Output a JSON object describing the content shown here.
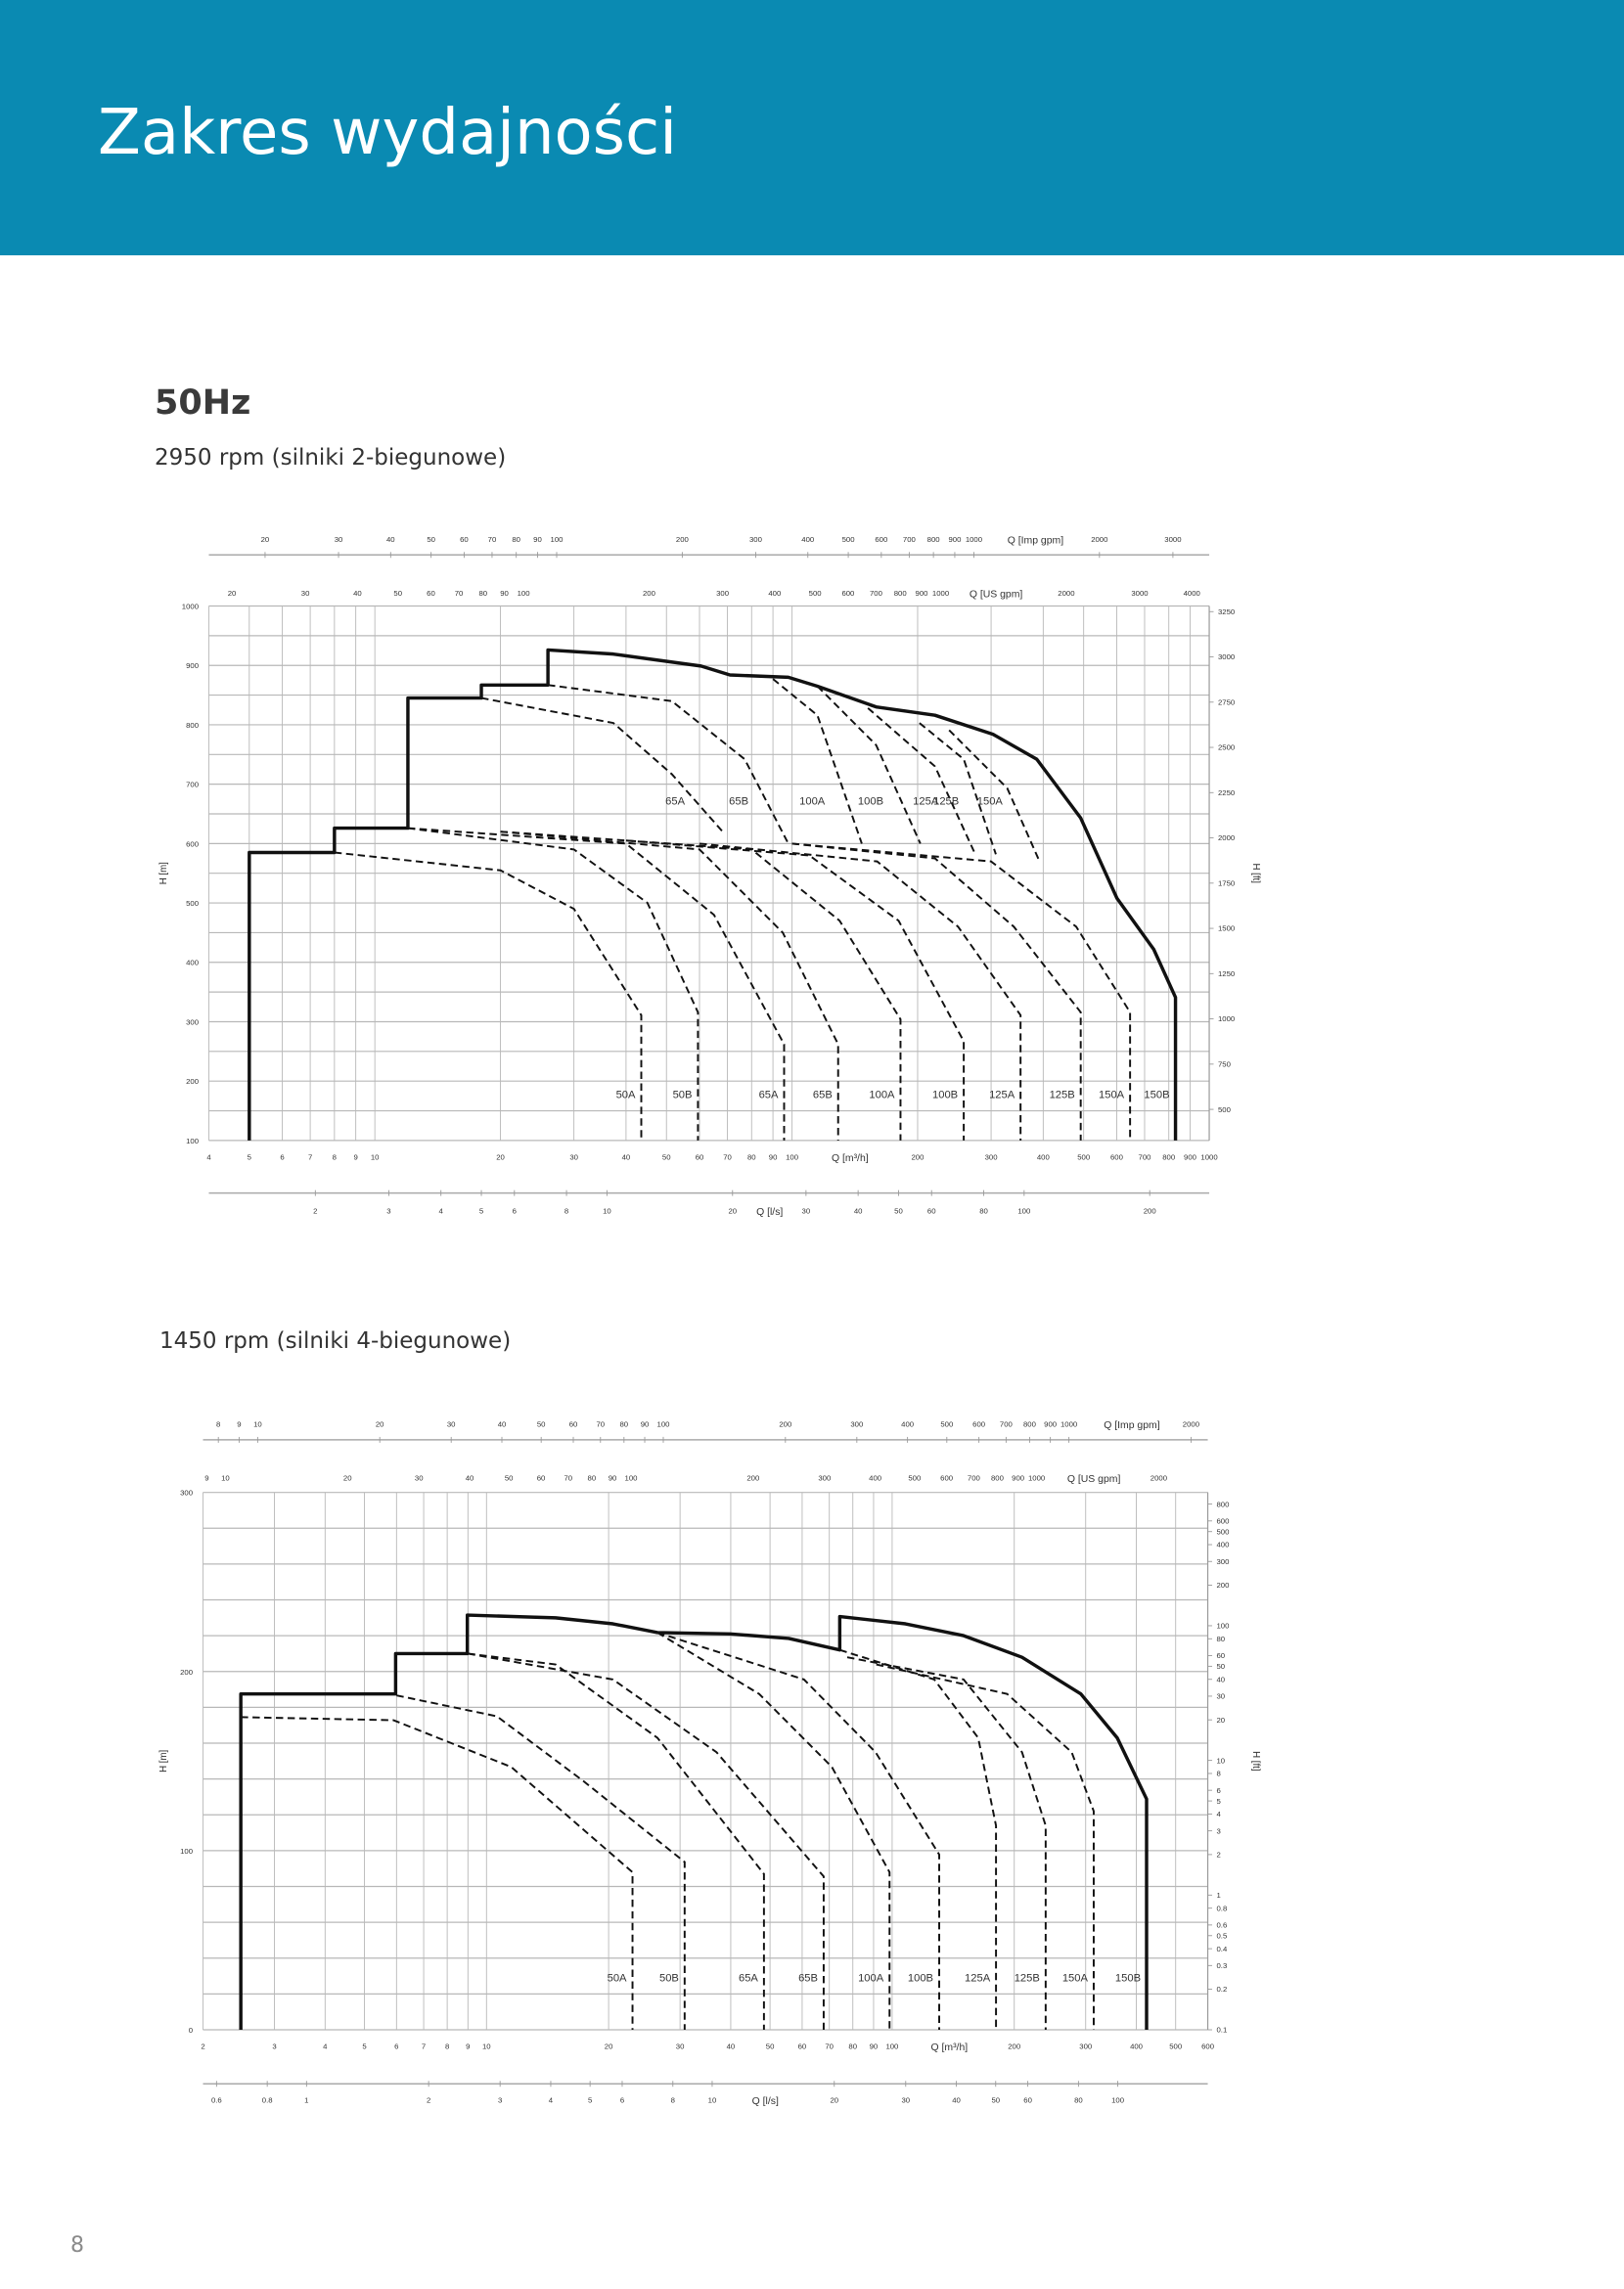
{
  "header": {
    "title": "Zakres wydajności"
  },
  "section": {
    "frequency": "50Hz"
  },
  "page_number": "8",
  "colors": {
    "header_bg": "#0a8ab2",
    "curve": "#111111",
    "grid": "#b8b8b8"
  },
  "chart_data": [
    {
      "type": "line",
      "subtitle": "2950 rpm (silniki 2-biegunowe)",
      "xlabel": "Q [m³/h]",
      "ylabel": "H [m]",
      "y2label": "H [ft]",
      "x_scale": "log",
      "xlim": [
        4,
        1000
      ],
      "ylim": [
        100,
        1000
      ],
      "y2_scale": "linear",
      "grid": true,
      "x_ticks": [
        4,
        5,
        6,
        7,
        8,
        9,
        10,
        20,
        30,
        40,
        50,
        60,
        70,
        80,
        90,
        100,
        200,
        300,
        400,
        500,
        600,
        700,
        800,
        900,
        1000
      ],
      "y_ticks": [
        100,
        200,
        300,
        400,
        500,
        600,
        700,
        800,
        900,
        1000
      ],
      "y2_ticks": [
        500,
        750,
        1000,
        1250,
        1500,
        1750,
        2000,
        2250,
        2500,
        2750,
        3000,
        3250
      ],
      "imp_gpm_axis": {
        "label": "Q [Imp gpm]",
        "ticks": [
          20,
          30,
          40,
          50,
          60,
          70,
          80,
          90,
          100,
          200,
          300,
          400,
          500,
          600,
          700,
          800,
          900,
          1000,
          2000,
          3000
        ]
      },
      "us_gpm_axis": {
        "label": "Q [US gpm]",
        "ticks": [
          20,
          30,
          40,
          50,
          60,
          70,
          80,
          90,
          100,
          200,
          300,
          400,
          500,
          600,
          700,
          800,
          900,
          1000,
          2000,
          3000,
          4000
        ]
      },
      "ls_axis": {
        "label": "Q [l/s]",
        "ticks": [
          2,
          3,
          4,
          5,
          6,
          8,
          10,
          20,
          30,
          40,
          50,
          60,
          80,
          100,
          200
        ]
      },
      "envelope": [
        [
          5,
          100
        ],
        [
          5,
          585
        ],
        [
          8,
          585
        ],
        [
          8,
          626
        ],
        [
          12,
          626
        ],
        [
          12,
          845
        ],
        [
          18,
          845
        ],
        [
          18,
          867
        ],
        [
          26,
          867
        ],
        [
          26,
          926
        ],
        [
          37.3,
          919
        ],
        [
          60.5,
          899
        ],
        [
          71,
          884
        ],
        [
          98,
          880
        ],
        [
          115,
          865
        ],
        [
          159,
          830
        ],
        [
          220,
          816
        ],
        [
          303,
          784
        ],
        [
          386,
          742
        ],
        [
          492,
          643
        ],
        [
          601,
          508
        ],
        [
          736,
          422
        ],
        [
          830,
          341
        ],
        [
          830,
          100
        ]
      ],
      "upper_curves": [
        {
          "name": "65A",
          "points": [
            [
              18,
              845
            ],
            [
              37.3,
              803
            ],
            [
              51.5,
              717
            ],
            [
              69,
              616
            ]
          ]
        },
        {
          "name": "65B",
          "points": [
            [
              26,
              867
            ],
            [
              51.5,
              840
            ],
            [
              77,
              742
            ],
            [
              98,
              600
            ]
          ]
        },
        {
          "name": "100A",
          "points": [
            [
              90,
              877
            ],
            [
              115,
              816
            ],
            [
              147,
              600
            ]
          ]
        },
        {
          "name": "100B",
          "points": [
            [
              115,
              865
            ],
            [
              159,
              766
            ],
            [
              203,
              600
            ]
          ]
        },
        {
          "name": "125A",
          "points": [
            [
              152,
              828
            ],
            [
              220,
              730
            ],
            [
              275,
              582
            ]
          ]
        },
        {
          "name": "125B",
          "points": [
            [
              202,
              803
            ],
            [
              258,
              742
            ],
            [
              308,
              582
            ]
          ]
        },
        {
          "name": "150A",
          "points": [
            [
              238,
              791
            ],
            [
              328,
              693
            ],
            [
              392,
              570
            ]
          ]
        }
      ],
      "lower_curves": [
        {
          "name": "50A",
          "points": [
            [
              8,
              585
            ],
            [
              20,
              555
            ],
            [
              30,
              490
            ],
            [
              43.5,
              311
            ]
          ]
        },
        {
          "name": "50B",
          "points": [
            [
              12,
              626
            ],
            [
              30,
              590
            ],
            [
              45,
              500
            ],
            [
              59.5,
              316
            ]
          ]
        },
        {
          "name": "65A",
          "points": [
            [
              12,
              626
            ],
            [
              40,
              600
            ],
            [
              65,
              480
            ],
            [
              95.7,
              262
            ]
          ]
        },
        {
          "name": "65B",
          "points": [
            [
              20,
              620
            ],
            [
              60,
              590
            ],
            [
              95,
              450
            ],
            [
              129,
              262
            ]
          ]
        },
        {
          "name": "100A",
          "points": [
            [
              20,
              620
            ],
            [
              80,
              590
            ],
            [
              130,
              470
            ],
            [
              182,
              304
            ]
          ]
        },
        {
          "name": "100B",
          "points": [
            [
              40,
              605
            ],
            [
              110,
              580
            ],
            [
              180,
              470
            ],
            [
              258,
              267
            ]
          ]
        },
        {
          "name": "125A",
          "points": [
            [
              60,
              600
            ],
            [
              160,
              570
            ],
            [
              250,
              460
            ],
            [
              353,
              311
            ]
          ]
        },
        {
          "name": "125B",
          "points": [
            [
              100,
              600
            ],
            [
              220,
              575
            ],
            [
              340,
              460
            ],
            [
              492,
              316
            ]
          ]
        },
        {
          "name": "150A",
          "points": [
            [
              100,
              600
            ],
            [
              300,
              570
            ],
            [
              480,
              460
            ],
            [
              646,
              316
            ]
          ]
        },
        {
          "name": "150B",
          "points": [
            [
              830,
              341
            ]
          ]
        }
      ]
    },
    {
      "type": "line",
      "subtitle": "1450 rpm (silniki 4-biegunowe)",
      "xlabel": "Q [m³/h]",
      "ylabel": "H [m]",
      "y2label": "H [ft]",
      "x_scale": "log",
      "xlim": [
        2,
        600
      ],
      "ylim": [
        0,
        300
      ],
      "y2_scale": "log",
      "grid": true,
      "x_ticks": [
        2,
        3,
        4,
        5,
        6,
        7,
        8,
        9,
        10,
        20,
        30,
        40,
        50,
        60,
        70,
        80,
        90,
        100,
        200,
        300,
        400,
        500,
        600
      ],
      "y_ticks": [
        0,
        100,
        200,
        300
      ],
      "y2_ticks": [
        0.1,
        0.2,
        0.3,
        0.4,
        0.5,
        0.6,
        0.8,
        1,
        2,
        3,
        4,
        5,
        6,
        8,
        10,
        20,
        30,
        40,
        50,
        60,
        80,
        100,
        200,
        300,
        400,
        500,
        600,
        800
      ],
      "imp_gpm_axis": {
        "label": "Q [Imp gpm]",
        "ticks": [
          8,
          9,
          10,
          20,
          30,
          40,
          50,
          60,
          70,
          80,
          90,
          100,
          200,
          300,
          400,
          500,
          600,
          700,
          800,
          900,
          1000,
          2000
        ]
      },
      "us_gpm_axis": {
        "label": "Q [US gpm]",
        "ticks": [
          9,
          10,
          20,
          30,
          40,
          50,
          60,
          70,
          80,
          90,
          100,
          200,
          300,
          400,
          500,
          600,
          700,
          800,
          900,
          1000,
          2000
        ]
      },
      "ls_axis": {
        "label": "Q [l/s]",
        "ticks": [
          0.6,
          0.8,
          1,
          2,
          3,
          4,
          5,
          6,
          8,
          10,
          20,
          30,
          40,
          50,
          60,
          80,
          100
        ]
      },
      "envelope": [
        [
          2.48,
          0
        ],
        [
          2.48,
          187.5
        ],
        [
          5.97,
          187.5
        ],
        [
          5.97,
          210
        ],
        [
          8.97,
          210
        ],
        [
          8.97,
          231.5
        ],
        [
          14.8,
          230
        ],
        [
          20.5,
          226.6
        ],
        [
          26.4,
          221.7
        ],
        [
          39.9,
          221
        ],
        [
          55.6,
          218.5
        ],
        [
          74.3,
          212
        ],
        [
          74.3,
          230.7
        ],
        [
          107.9,
          226.6
        ],
        [
          150,
          220
        ],
        [
          209,
          208
        ],
        [
          292,
          187.5
        ],
        [
          359,
          163
        ],
        [
          424,
          128.8
        ],
        [
          424,
          0
        ]
      ],
      "upper_curves": [],
      "lower_curves": [
        {
          "name": "50A",
          "points": [
            [
              2.48,
              174.5
            ],
            [
              5.9,
              172.8
            ],
            [
              11.5,
              146.7
            ],
            [
              22.9,
              88
            ]
          ]
        },
        {
          "name": "50B",
          "points": [
            [
              6,
              186.7
            ],
            [
              10.6,
              175
            ],
            [
              17.4,
              138.6
            ],
            [
              30.8,
              93.7
            ]
          ]
        },
        {
          "name": "65A",
          "points": [
            [
              9,
              210
            ],
            [
              14.8,
              204
            ],
            [
              26.4,
              163
            ],
            [
              48.3,
              87
            ]
          ]
        },
        {
          "name": "65B",
          "points": [
            [
              9,
              210
            ],
            [
              20.5,
              195.6
            ],
            [
              36.9,
              155
            ],
            [
              67.8,
              85.6
            ]
          ]
        },
        {
          "name": "100A",
          "points": [
            [
              26.4,
              221.7
            ],
            [
              47,
              187.5
            ],
            [
              71,
              146.7
            ],
            [
              98.5,
              88
            ]
          ]
        },
        {
          "name": "100B",
          "points": [
            [
              26.4,
              221.7
            ],
            [
              60.6,
              195.6
            ],
            [
              91,
              155
            ],
            [
              130.6,
              97.8
            ]
          ]
        },
        {
          "name": "125A",
          "points": [
            [
              74.3,
              212
            ],
            [
              127,
              195.6
            ],
            [
              163,
              163
            ],
            [
              180.4,
              114
            ]
          ]
        },
        {
          "name": "125B",
          "points": [
            [
              77.5,
              208
            ],
            [
              150,
              195.6
            ],
            [
              209,
              155
            ],
            [
              239,
              114
            ]
          ]
        },
        {
          "name": "150A",
          "points": [
            [
              91.4,
              204
            ],
            [
              192,
              187.5
            ],
            [
              277,
              155
            ],
            [
              314,
              122
            ]
          ]
        },
        {
          "name": "150B",
          "points": [
            [
              424,
              128.8
            ]
          ]
        }
      ]
    }
  ]
}
